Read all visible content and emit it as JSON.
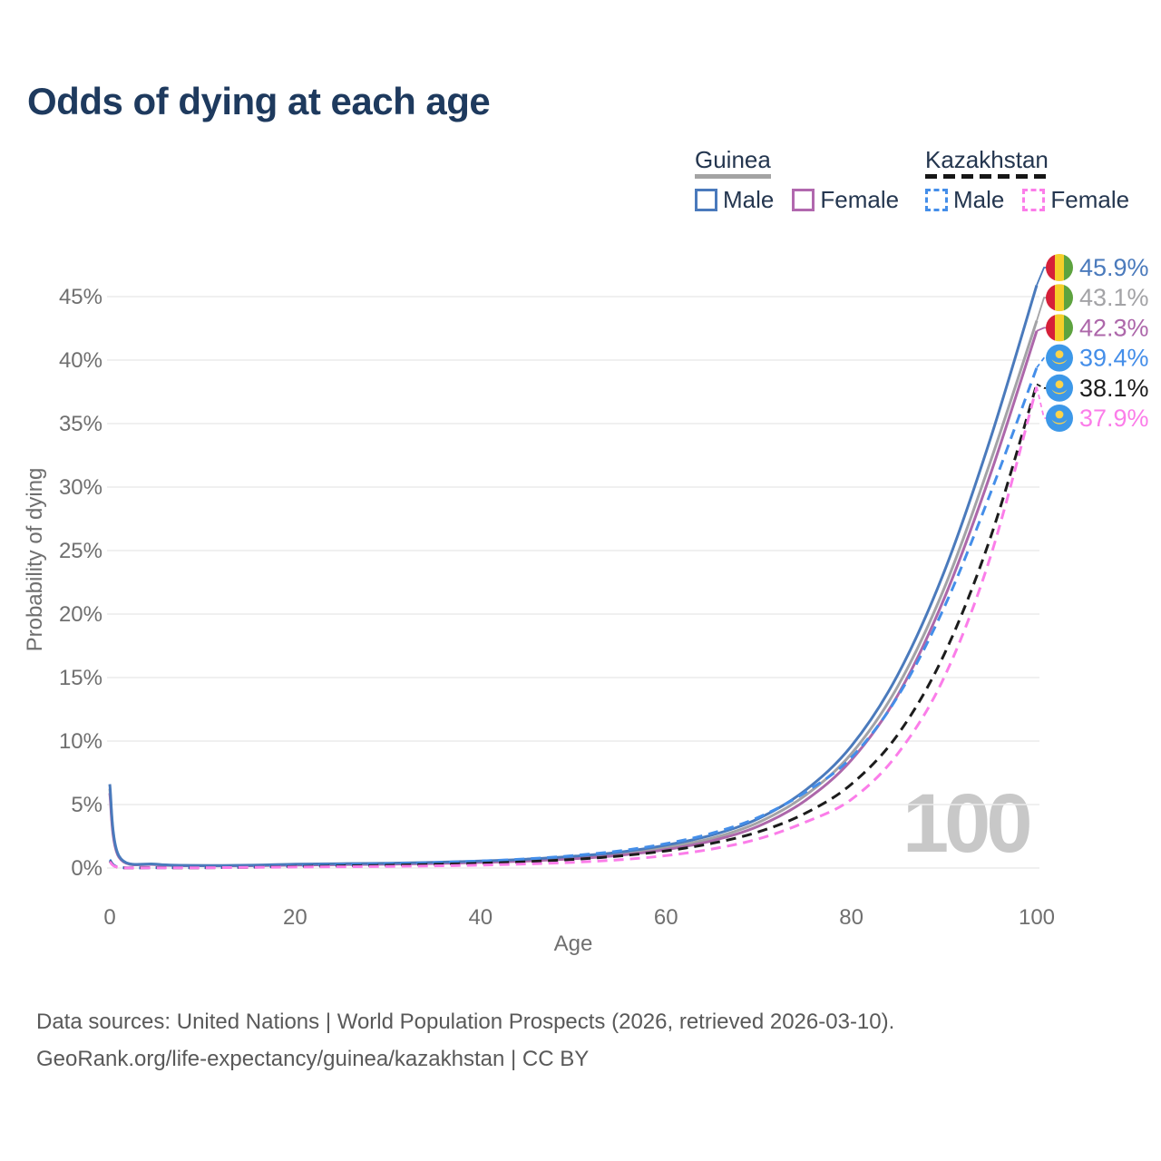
{
  "title": "Odds of dying at each age",
  "legend": {
    "groups": [
      {
        "title": "Guinea",
        "underline_style": "solid",
        "underline_color": "#a3a3a3",
        "items": [
          {
            "label": "Male",
            "color": "#4a7abc",
            "dashed": false
          },
          {
            "label": "Female",
            "color": "#b168ae",
            "dashed": false
          }
        ]
      },
      {
        "title": "Kazakhstan",
        "underline_style": "dashed",
        "underline_color": "#161616",
        "items": [
          {
            "label": "Male",
            "color": "#448ee9",
            "dashed": true
          },
          {
            "label": "Female",
            "color": "#fb7de9",
            "dashed": true
          }
        ]
      }
    ]
  },
  "watermark": "100",
  "footer": {
    "line1": "Data sources: United Nations | World Population Prospects (2026, retrieved 2026-03-10).",
    "line2": "GeoRank.org/life-expectancy/guinea/kazakhstan | CC BY"
  },
  "chart_data": {
    "type": "line",
    "title": "Odds of dying at each age",
    "xlabel": "Age",
    "ylabel": "Probability of dying",
    "xlim": [
      0,
      100
    ],
    "ylim_percent": [
      0,
      47
    ],
    "x_ticks": [
      0,
      20,
      40,
      60,
      80,
      100
    ],
    "y_ticks_percent": [
      0,
      5,
      10,
      15,
      20,
      25,
      30,
      35,
      40,
      45
    ],
    "grid": "horizontal-only",
    "legend_position": "top-right",
    "x": [
      0,
      1,
      5,
      10,
      15,
      20,
      25,
      30,
      35,
      40,
      45,
      50,
      55,
      60,
      65,
      70,
      75,
      80,
      85,
      90,
      95,
      100
    ],
    "series": [
      {
        "name": "Guinea Male",
        "country": "Guinea",
        "sex": "Male",
        "color": "#4a7abc",
        "dash": "solid",
        "end_label": "45.9%",
        "flag": "guinea",
        "values": [
          6.6,
          0.95,
          0.3,
          0.2,
          0.22,
          0.3,
          0.34,
          0.38,
          0.45,
          0.55,
          0.7,
          0.92,
          1.25,
          1.8,
          2.6,
          3.9,
          6.1,
          9.6,
          15.2,
          23.3,
          33.8,
          45.9
        ]
      },
      {
        "name": "Guinea Both sexes",
        "country": "Guinea",
        "sex": "Both",
        "color": "#a3a3a6",
        "dash": "solid",
        "end_label": "43.1%",
        "flag": "guinea",
        "values": [
          6.25,
          0.9,
          0.28,
          0.19,
          0.2,
          0.26,
          0.3,
          0.34,
          0.4,
          0.49,
          0.62,
          0.82,
          1.12,
          1.62,
          2.35,
          3.6,
          5.7,
          9.0,
          14.3,
          22.0,
          32.0,
          43.1
        ]
      },
      {
        "name": "Guinea Female",
        "country": "Guinea",
        "sex": "Female",
        "color": "#ad67aa",
        "dash": "solid",
        "end_label": "42.3%",
        "flag": "guinea",
        "values": [
          5.9,
          0.85,
          0.27,
          0.18,
          0.18,
          0.23,
          0.27,
          0.31,
          0.36,
          0.44,
          0.55,
          0.73,
          1.0,
          1.45,
          2.15,
          3.3,
          5.3,
          8.5,
          13.6,
          21.2,
          31.0,
          42.3
        ]
      },
      {
        "name": "Kazakhstan Male",
        "country": "Kazakhstan",
        "sex": "Male",
        "color": "#448ee9",
        "dash": "dashed",
        "end_label": "39.4%",
        "flag": "kazakhstan",
        "values": [
          0.65,
          0.06,
          0.03,
          0.03,
          0.08,
          0.17,
          0.25,
          0.33,
          0.43,
          0.55,
          0.72,
          0.98,
          1.35,
          1.92,
          2.75,
          4.0,
          5.95,
          8.7,
          13.5,
          20.5,
          29.5,
          39.4
        ]
      },
      {
        "name": "Kazakhstan Both sexes",
        "country": "Kazakhstan",
        "sex": "Both",
        "color": "#1c1c1c",
        "dash": "dashed",
        "end_label": "38.1%",
        "flag": "kazakhstan",
        "values": [
          0.55,
          0.05,
          0.03,
          0.02,
          0.06,
          0.12,
          0.17,
          0.22,
          0.29,
          0.38,
          0.5,
          0.68,
          0.95,
          1.35,
          1.95,
          2.85,
          4.3,
          6.6,
          10.5,
          16.8,
          26.0,
          38.1
        ]
      },
      {
        "name": "Kazakhstan Female",
        "country": "Kazakhstan",
        "sex": "Female",
        "color": "#fb7de9",
        "dash": "dashed",
        "end_label": "37.9%",
        "flag": "kazakhstan",
        "values": [
          0.5,
          0.05,
          0.02,
          0.02,
          0.05,
          0.08,
          0.1,
          0.13,
          0.17,
          0.23,
          0.32,
          0.45,
          0.65,
          0.98,
          1.5,
          2.3,
          3.6,
          5.4,
          9.0,
          15.0,
          24.5,
          37.9
        ]
      }
    ],
    "flag_colors": {
      "guinea": [
        "#d62039",
        "#f5cf2a",
        "#5da33f"
      ],
      "kazakhstan": [
        "#3d98e8",
        "#fbd34a"
      ]
    },
    "axis_text_color": "#6f6f6f",
    "grid_color": "#ececec"
  }
}
